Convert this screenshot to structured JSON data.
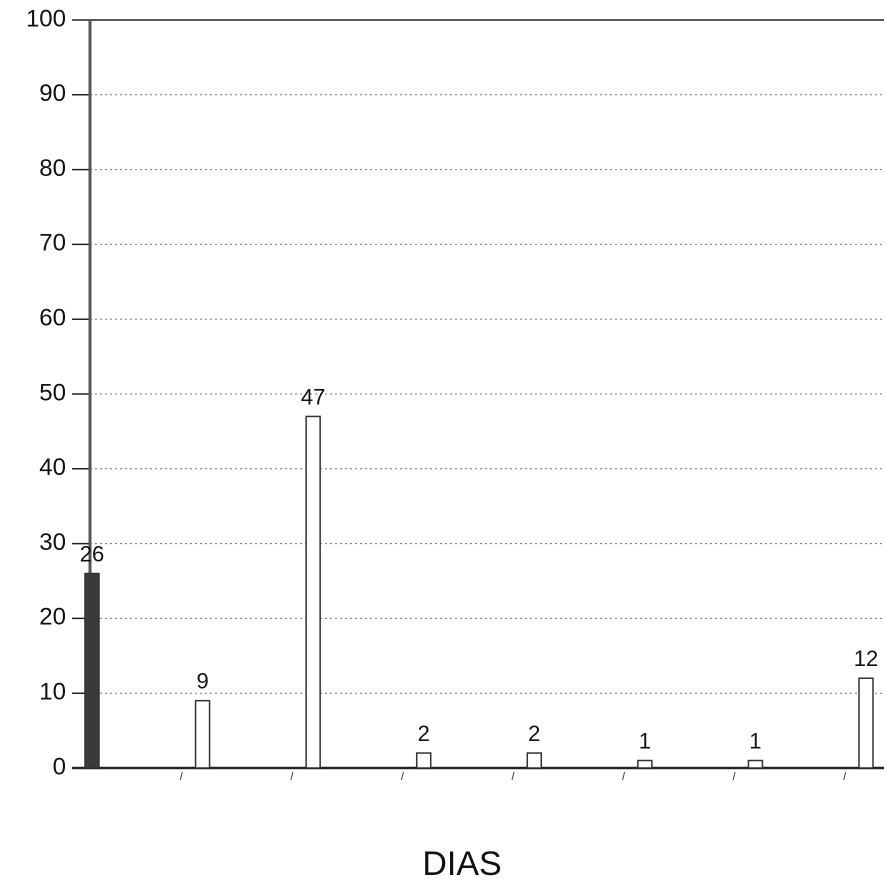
{
  "chart_data": {
    "type": "bar",
    "x_label": "DIAS",
    "categories": [
      null,
      null,
      null,
      null,
      null,
      null,
      null,
      null
    ],
    "values": [
      26,
      9,
      47,
      2,
      2,
      1,
      1,
      12
    ],
    "colors": [
      "#3a3a3a",
      "#ffffff",
      "#ffffff",
      "#ffffff",
      "#ffffff",
      "#ffffff",
      "#ffffff",
      "#ffffff"
    ],
    "ylim": [
      0,
      100
    ],
    "yticks": [
      0,
      10,
      20,
      30,
      40,
      50,
      60,
      70,
      80,
      90,
      100
    ],
    "grid": true
  }
}
